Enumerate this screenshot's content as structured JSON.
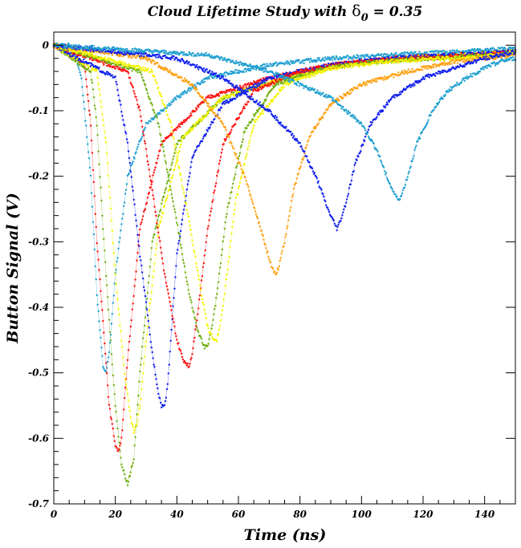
{
  "chart_data": {
    "type": "scatter",
    "title_main": "Cloud Lifetime Study with ",
    "title_symbol": "δ",
    "title_subscript": "0",
    "title_value": " = 0.35",
    "xlabel": "Time (ns)",
    "ylabel": "Button Signal (V)",
    "xlim": [
      0,
      150
    ],
    "ylim": [
      -0.7,
      0.02
    ],
    "x_ticks": [
      0,
      20,
      40,
      60,
      80,
      100,
      120,
      140
    ],
    "x_tick_labels": [
      "0",
      "20",
      "40",
      "60",
      "80",
      "100",
      "120",
      "140"
    ],
    "y_ticks": [
      0,
      -0.1,
      -0.2,
      -0.3,
      -0.4,
      -0.5,
      -0.6,
      -0.7
    ],
    "y_tick_labels": [
      "0",
      "-0.1",
      "-0.2",
      "-0.3",
      "-0.4",
      "-0.5",
      "-0.6",
      "-0.7"
    ],
    "grid": false,
    "legend": "none",
    "series": [
      {
        "color": "#1f9fd0",
        "x": [
          0,
          6,
          9,
          12,
          14,
          16,
          17,
          18,
          20,
          24,
          30,
          40,
          50,
          70,
          90,
          110,
          130,
          150
        ],
        "y": [
          0,
          0,
          -0.05,
          -0.2,
          -0.38,
          -0.49,
          -0.5,
          -0.47,
          -0.35,
          -0.2,
          -0.12,
          -0.08,
          -0.05,
          -0.03,
          -0.02,
          -0.015,
          -0.01,
          -0.005
        ]
      },
      {
        "color": "#ff1010",
        "x": [
          0,
          10,
          12,
          14,
          16,
          18,
          20,
          21,
          22,
          24,
          28,
          35,
          50,
          70,
          90,
          110,
          130,
          150
        ],
        "y": [
          0,
          -0.03,
          -0.12,
          -0.3,
          -0.42,
          -0.55,
          -0.61,
          -0.62,
          -0.6,
          -0.48,
          -0.28,
          -0.15,
          -0.08,
          -0.05,
          -0.03,
          -0.02,
          -0.015,
          -0.01
        ]
      },
      {
        "color": "#6fb010",
        "x": [
          0,
          12,
          14,
          16,
          18,
          20,
          22,
          24,
          26,
          28,
          32,
          40,
          55,
          75,
          95,
          115,
          135,
          150
        ],
        "y": [
          0,
          -0.04,
          -0.12,
          -0.28,
          -0.42,
          -0.55,
          -0.64,
          -0.67,
          -0.63,
          -0.5,
          -0.3,
          -0.15,
          -0.08,
          -0.05,
          -0.03,
          -0.02,
          -0.015,
          -0.01
        ]
      },
      {
        "color": "#f5f500",
        "x": [
          0,
          14,
          17,
          20,
          23,
          25,
          26,
          27,
          28,
          30,
          34,
          42,
          55,
          75,
          95,
          115,
          135,
          150
        ],
        "y": [
          0,
          -0.04,
          -0.15,
          -0.35,
          -0.5,
          -0.57,
          -0.59,
          -0.58,
          -0.55,
          -0.45,
          -0.28,
          -0.14,
          -0.08,
          -0.05,
          -0.03,
          -0.02,
          -0.015,
          -0.01
        ]
      },
      {
        "color": "#1020ee",
        "x": [
          0,
          20,
          24,
          28,
          32,
          34,
          35,
          36,
          37,
          38,
          40,
          45,
          55,
          70,
          90,
          110,
          130,
          150
        ],
        "y": [
          0,
          -0.05,
          -0.15,
          -0.32,
          -0.47,
          -0.53,
          -0.55,
          -0.55,
          -0.52,
          -0.45,
          -0.32,
          -0.17,
          -0.09,
          -0.05,
          -0.03,
          -0.02,
          -0.015,
          -0.01
        ]
      },
      {
        "color": "#ff1010",
        "x": [
          0,
          24,
          28,
          32,
          36,
          40,
          42,
          44,
          45,
          47,
          50,
          55,
          65,
          80,
          100,
          120,
          140,
          150
        ],
        "y": [
          0,
          -0.04,
          -0.1,
          -0.22,
          -0.35,
          -0.45,
          -0.48,
          -0.49,
          -0.47,
          -0.4,
          -0.28,
          -0.15,
          -0.07,
          -0.04,
          -0.025,
          -0.02,
          -0.015,
          -0.01
        ]
      },
      {
        "color": "#6fb010",
        "x": [
          0,
          28,
          34,
          40,
          44,
          47,
          49,
          50,
          51,
          53,
          56,
          62,
          72,
          88,
          105,
          125,
          145,
          150
        ],
        "y": [
          0,
          -0.04,
          -0.12,
          -0.27,
          -0.38,
          -0.44,
          -0.46,
          -0.46,
          -0.44,
          -0.38,
          -0.26,
          -0.13,
          -0.06,
          -0.035,
          -0.025,
          -0.02,
          -0.015,
          -0.01
        ]
      },
      {
        "color": "#f5f500",
        "x": [
          0,
          32,
          38,
          44,
          48,
          50,
          52,
          53,
          54,
          56,
          59,
          65,
          75,
          90,
          108,
          128,
          145,
          150
        ],
        "y": [
          0,
          -0.04,
          -0.12,
          -0.27,
          -0.38,
          -0.43,
          -0.45,
          -0.45,
          -0.43,
          -0.36,
          -0.24,
          -0.12,
          -0.06,
          -0.035,
          -0.025,
          -0.02,
          -0.015,
          -0.01
        ]
      },
      {
        "color": "#ffa010",
        "x": [
          0,
          30,
          45,
          55,
          62,
          66,
          69,
          71,
          72,
          73,
          75,
          78,
          83,
          90,
          100,
          115,
          130,
          150
        ],
        "y": [
          0,
          -0.02,
          -0.06,
          -0.12,
          -0.2,
          -0.26,
          -0.31,
          -0.34,
          -0.35,
          -0.34,
          -0.3,
          -0.22,
          -0.14,
          -0.09,
          -0.06,
          -0.04,
          -0.025,
          -0.015
        ]
      },
      {
        "color": "#1020ee",
        "x": [
          0,
          40,
          55,
          70,
          80,
          86,
          89,
          91,
          92,
          93,
          95,
          98,
          103,
          110,
          120,
          130,
          140,
          150
        ],
        "y": [
          0,
          -0.02,
          -0.05,
          -0.1,
          -0.15,
          -0.21,
          -0.25,
          -0.27,
          -0.28,
          -0.27,
          -0.24,
          -0.18,
          -0.12,
          -0.08,
          -0.05,
          -0.035,
          -0.02,
          -0.01
        ]
      },
      {
        "color": "#1f9fd0",
        "x": [
          0,
          50,
          70,
          90,
          100,
          105,
          109,
          111,
          112,
          113,
          115,
          118,
          123,
          128,
          134,
          140,
          145,
          150
        ],
        "y": [
          0,
          -0.015,
          -0.04,
          -0.08,
          -0.12,
          -0.16,
          -0.21,
          -0.23,
          -0.235,
          -0.23,
          -0.2,
          -0.15,
          -0.1,
          -0.07,
          -0.05,
          -0.035,
          -0.025,
          -0.02
        ]
      }
    ]
  }
}
